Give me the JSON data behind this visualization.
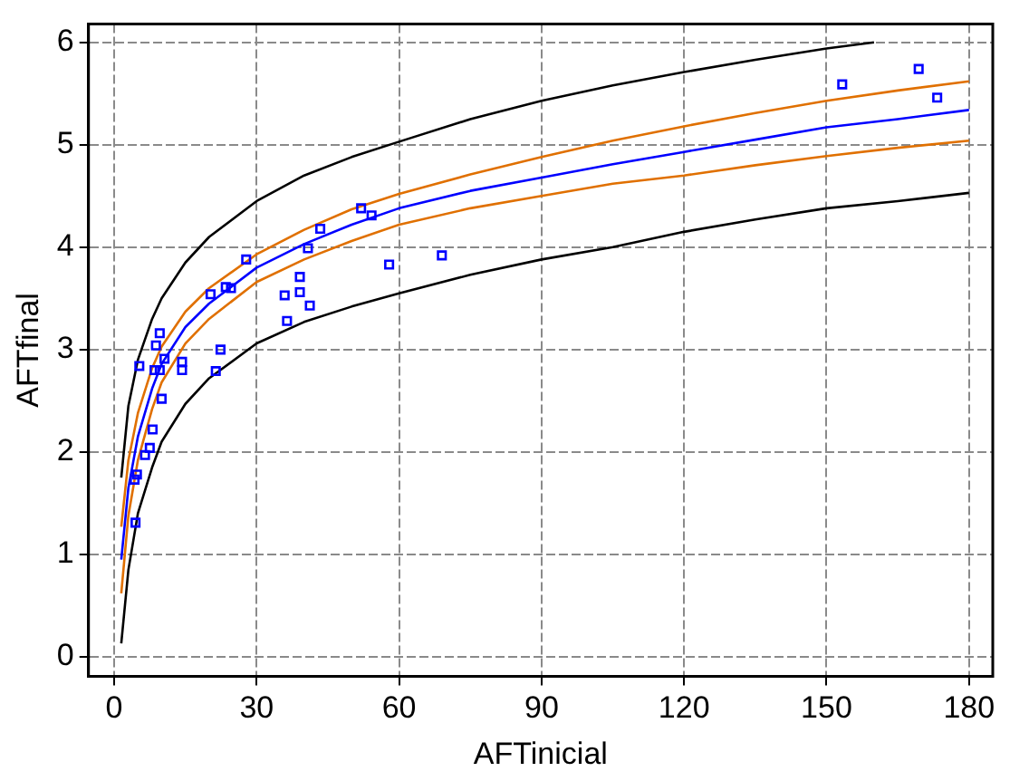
{
  "chart_data": {
    "type": "scatter",
    "xlabel": "AFTinicial",
    "ylabel": "AFTfinal",
    "xlim": [
      -5.4,
      185
    ],
    "ylim": [
      -0.19,
      6.18
    ],
    "xticks": [
      0,
      30,
      60,
      90,
      120,
      150,
      180
    ],
    "yticks": [
      0,
      1,
      2,
      3,
      4,
      5,
      6
    ],
    "grid": true,
    "legend": false,
    "series": [
      {
        "type": "scatter",
        "color": "#0000ff",
        "marker": "square",
        "x": [
          5.3,
          4.3,
          4.8,
          4.5,
          6.5,
          7.5,
          8.1,
          8.5,
          8.8,
          9.6,
          9.6,
          10.0,
          10.6,
          14.3,
          14.3,
          20.3,
          21.4,
          22.4,
          23.5,
          24.6,
          27.8,
          35.9,
          36.4,
          39.1,
          39.1,
          40.8,
          41.2,
          43.4,
          52.0,
          54.2,
          57.9,
          69.0,
          153.3,
          169.4,
          173.3
        ],
        "values": [
          2.84,
          1.73,
          1.78,
          1.31,
          1.97,
          2.04,
          2.22,
          2.8,
          3.04,
          3.16,
          2.8,
          2.52,
          2.91,
          2.8,
          2.88,
          3.54,
          2.79,
          3.0,
          3.61,
          3.6,
          3.88,
          3.53,
          3.28,
          3.71,
          3.56,
          3.99,
          3.43,
          4.18,
          4.38,
          4.31,
          3.83,
          3.92,
          5.59,
          5.74,
          5.46
        ]
      },
      {
        "type": "line",
        "color": "#0000ff",
        "marker": "none",
        "x": [
          1.5,
          3,
          5,
          8,
          10,
          15,
          20,
          30,
          40,
          50,
          60,
          75,
          90,
          105,
          120,
          135,
          150,
          165,
          180
        ],
        "values": [
          0.95,
          1.65,
          2.15,
          2.62,
          2.86,
          3.22,
          3.45,
          3.8,
          4.03,
          4.22,
          4.38,
          4.55,
          4.68,
          4.81,
          4.93,
          5.05,
          5.17,
          5.25,
          5.34
        ]
      },
      {
        "type": "line",
        "color": "#e07000",
        "marker": "none",
        "x": [
          1.5,
          3,
          5,
          8,
          10,
          15,
          20,
          30,
          40,
          50,
          60,
          75,
          90,
          105,
          120,
          135,
          150,
          165,
          180
        ],
        "values": [
          1.27,
          1.92,
          2.38,
          2.82,
          3.03,
          3.37,
          3.6,
          3.93,
          4.17,
          4.37,
          4.52,
          4.71,
          4.88,
          5.04,
          5.18,
          5.31,
          5.43,
          5.53,
          5.62
        ]
      },
      {
        "type": "line",
        "color": "#e07000",
        "marker": "none",
        "x": [
          1.5,
          3,
          5,
          8,
          10,
          15,
          20,
          30,
          40,
          50,
          60,
          75,
          90,
          105,
          120,
          135,
          150,
          165,
          180
        ],
        "values": [
          0.62,
          1.38,
          1.92,
          2.42,
          2.68,
          3.06,
          3.3,
          3.66,
          3.88,
          4.06,
          4.22,
          4.38,
          4.5,
          4.62,
          4.7,
          4.8,
          4.89,
          4.97,
          5.04
        ]
      },
      {
        "type": "line",
        "color": "#000000",
        "marker": "none",
        "x": [
          1.5,
          3,
          5,
          8,
          10,
          15,
          20,
          30,
          40,
          50,
          60,
          75,
          90,
          105,
          120,
          135,
          150,
          160
        ],
        "values": [
          1.75,
          2.45,
          2.9,
          3.3,
          3.5,
          3.85,
          4.1,
          4.45,
          4.7,
          4.88,
          5.03,
          5.25,
          5.43,
          5.58,
          5.71,
          5.83,
          5.94,
          6.0
        ]
      },
      {
        "type": "line",
        "color": "#000000",
        "marker": "none",
        "x": [
          1.5,
          3,
          5,
          8,
          10,
          15,
          20,
          30,
          40,
          50,
          60,
          75,
          90,
          105,
          120,
          135,
          150,
          165,
          180
        ],
        "values": [
          0.13,
          0.85,
          1.4,
          1.85,
          2.1,
          2.47,
          2.72,
          3.06,
          3.27,
          3.42,
          3.55,
          3.73,
          3.88,
          4.0,
          4.15,
          4.27,
          4.38,
          4.45,
          4.53
        ]
      }
    ]
  }
}
